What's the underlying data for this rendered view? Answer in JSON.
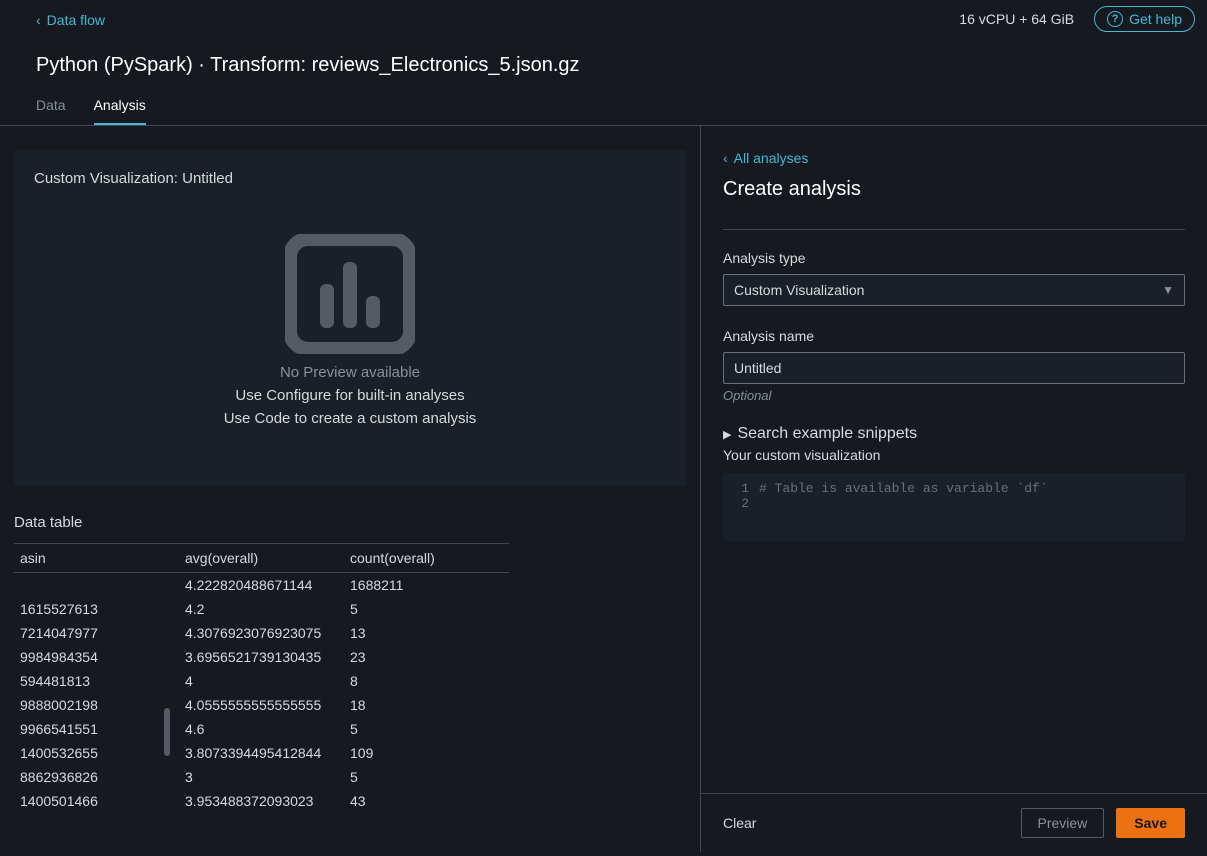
{
  "topbar": {
    "breadcrumb_back": "Data flow",
    "resource": "16 vCPU + 64 GiB",
    "help": "Get help"
  },
  "title": "Python (PySpark) · Transform: reviews_Electronics_5.json.gz",
  "tabs": {
    "data": "Data",
    "analysis": "Analysis"
  },
  "viz": {
    "panel_title": "Custom Visualization: Untitled",
    "no_preview": "No Preview available",
    "hint1": "Use Configure for built-in analyses",
    "hint2": "Use Code to create a custom analysis",
    "icon_fill": "#545b64",
    "icon_bg": "#2a3038"
  },
  "data_table": {
    "title": "Data table",
    "columns": [
      "asin",
      "avg(overall)",
      "count(overall)"
    ],
    "col_widths": [
      "165px",
      "165px",
      "165px"
    ],
    "rows": [
      [
        "",
        "4.222820488671144",
        "1688211"
      ],
      [
        "1615527613",
        "4.2",
        "5"
      ],
      [
        "7214047977",
        "4.3076923076923075",
        "13"
      ],
      [
        "9984984354",
        "3.6956521739130435",
        "23"
      ],
      [
        "594481813",
        "4",
        "8"
      ],
      [
        "9888002198",
        "4.0555555555555555",
        "18"
      ],
      [
        "9966541551",
        "4.6",
        "5"
      ],
      [
        "1400532655",
        "3.8073394495412844",
        "109"
      ],
      [
        "8862936826",
        "3",
        "5"
      ],
      [
        "1400501466",
        "3.953488372093023",
        "43"
      ]
    ]
  },
  "right": {
    "back": "All analyses",
    "title": "Create analysis",
    "type_label": "Analysis type",
    "type_value": "Custom Visualization",
    "name_label": "Analysis name",
    "name_value": "Untitled",
    "optional": "Optional",
    "snippets": "Search example snippets",
    "custom_label": "Your custom visualization",
    "code_comment": "# Table is available as variable `df`",
    "clear": "Clear",
    "preview": "Preview",
    "save": "Save"
  }
}
